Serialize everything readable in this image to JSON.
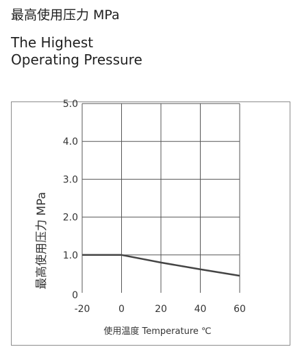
{
  "header": {
    "title_cn": "最高使用压力 MPa",
    "title_en_line1": "The Highest",
    "title_en_line2": "Operating Pressure"
  },
  "chart_data": {
    "type": "line",
    "xlabel": "使用温度 Temperature ℃",
    "ylabel": "最高使用压力 MPa",
    "xlim": [
      -20,
      60
    ],
    "ylim": [
      0,
      5
    ],
    "x_ticks": [
      -20,
      0,
      20,
      40,
      60
    ],
    "x_tick_labels": [
      "-20",
      "0",
      "20",
      "40",
      "60"
    ],
    "y_ticks": [
      0,
      1,
      2,
      3,
      4,
      5
    ],
    "y_tick_labels": [
      "0",
      "1.0",
      "2.0",
      "3.0",
      "4.0",
      "5.0"
    ],
    "grid": true,
    "series": [
      {
        "x": [
          -20,
          0,
          20,
          40,
          60
        ],
        "y": [
          1.0,
          1.0,
          0.8,
          0.62,
          0.45
        ]
      }
    ],
    "colors": {
      "line": "#444444",
      "grid": "#555555",
      "frame": "#8a8a8a"
    }
  }
}
